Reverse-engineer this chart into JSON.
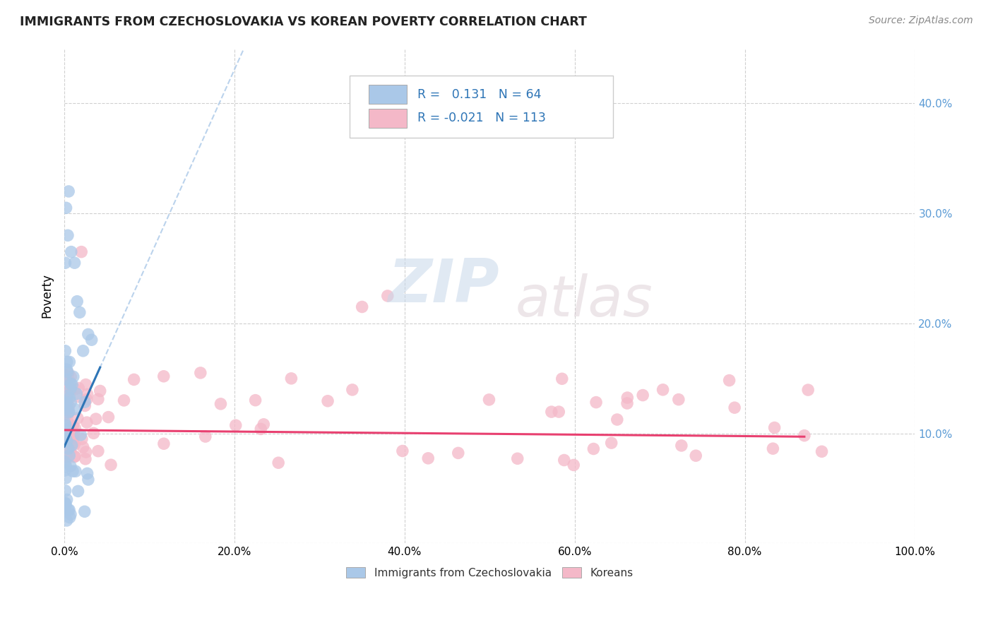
{
  "title": "IMMIGRANTS FROM CZECHOSLOVAKIA VS KOREAN POVERTY CORRELATION CHART",
  "source": "Source: ZipAtlas.com",
  "ylabel": "Poverty",
  "watermark_zip": "ZIP",
  "watermark_atlas": "atlas",
  "blue_r": 0.131,
  "blue_n": 64,
  "pink_r": -0.021,
  "pink_n": 113,
  "xlim": [
    0.0,
    1.0
  ],
  "ylim": [
    0.0,
    0.45
  ],
  "xticks": [
    0.0,
    0.2,
    0.4,
    0.6,
    0.8,
    1.0
  ],
  "xticklabels": [
    "0.0%",
    "20.0%",
    "40.0%",
    "60.0%",
    "80.0%",
    "100.0%"
  ],
  "yticks": [
    0.0,
    0.1,
    0.2,
    0.3,
    0.4
  ],
  "yticklabels_right": [
    "",
    "10.0%",
    "20.0%",
    "30.0%",
    "40.0%"
  ],
  "tick_color": "#5b9bd5",
  "background": "#ffffff",
  "grid_color": "#d0d0d0",
  "blue_dot_color": "#aac8e8",
  "blue_line_color": "#2e75b6",
  "blue_dash_color": "#aac8e8",
  "pink_dot_color": "#f4b8c8",
  "pink_line_color": "#e84070",
  "legend_text_color": "#2e75b6",
  "legend_label_color": "#333333",
  "source_color": "#888888"
}
